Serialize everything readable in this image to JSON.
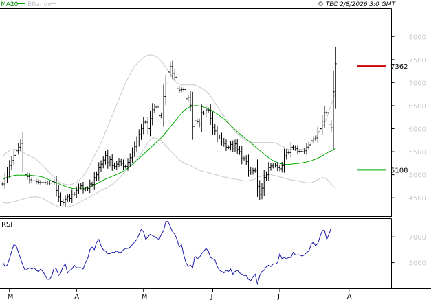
{
  "header": {
    "ma_label": "MA20",
    "bb_label": "BBands",
    "copyright": "© TEC 2/8/2026 3:0 GMT"
  },
  "colors": {
    "price": "#000000",
    "ma": "#00aa00",
    "bbands": "#c8c8c8",
    "rsi": "#1a1aaa",
    "resistance": "#cc0000",
    "support": "#00aa00",
    "axis": "#000000"
  },
  "chart_data": [
    {
      "type": "ohlc",
      "title": "",
      "ylim": [
        4100,
        8600
      ],
      "yticks": [
        {
          "label": "8000",
          "value": 8000
        },
        {
          "label": "7500",
          "value": 7500
        },
        {
          "label": "7000",
          "value": 7000
        },
        {
          "label": "6500",
          "value": 6500
        },
        {
          "label": "6000",
          "value": 6000
        },
        {
          "label": "5500",
          "value": 5500
        },
        {
          "label": "5000",
          "value": 5000
        },
        {
          "label": "4500",
          "value": 4500
        }
      ],
      "xticks": [
        {
          "label": "M",
          "index": 3
        },
        {
          "label": "A",
          "index": 33
        },
        {
          "label": "M",
          "index": 63
        },
        {
          "label": "J",
          "index": 94
        },
        {
          "label": "J",
          "index": 124
        },
        {
          "label": "A",
          "index": 155
        }
      ],
      "price_close": [
        4800,
        4930,
        5060,
        5200,
        5310,
        5420,
        5520,
        5600,
        5680,
        5300,
        5000,
        4960,
        4890,
        4870,
        4870,
        4850,
        4840,
        4830,
        4830,
        4830,
        4820,
        4820,
        4850,
        4830,
        4660,
        4520,
        4420,
        4390,
        4470,
        4520,
        4480,
        4580,
        4580,
        4660,
        4730,
        4760,
        4680,
        4690,
        4700,
        4800,
        4790,
        4940,
        5000,
        5150,
        5230,
        5320,
        5420,
        5260,
        5330,
        5200,
        5180,
        5230,
        5290,
        5250,
        5180,
        5180,
        5270,
        5370,
        5490,
        5610,
        5730,
        5870,
        6000,
        6140,
        6140,
        6000,
        6220,
        6410,
        6470,
        6470,
        6280,
        6300,
        6700,
        6970,
        7230,
        7350,
        7200,
        7120,
        6870,
        6840,
        6850,
        6850,
        6650,
        6680,
        6510,
        6050,
        6170,
        6150,
        6100,
        6350,
        6340,
        6410,
        6400,
        6220,
        6020,
        5950,
        5820,
        5820,
        5730,
        5680,
        5600,
        5600,
        5660,
        5580,
        5670,
        5550,
        5500,
        5350,
        5350,
        5290,
        5100,
        5060,
        5090,
        5100,
        4750,
        4580,
        4710,
        4940,
        5000,
        5150,
        5190,
        5210,
        5200,
        5150,
        5130,
        5200,
        5410,
        5480,
        5480,
        5600,
        5590,
        5570,
        5510,
        5510,
        5500,
        5520,
        5600,
        5650,
        5740,
        5780,
        5800,
        5930,
        6000,
        6160,
        6350,
        6350,
        6100,
        6020,
        6800,
        7410
      ],
      "ma20": [
        4900,
        4940,
        4970,
        4990,
        4990,
        4990,
        4990,
        4980,
        4970,
        4950,
        4910,
        4870,
        4830,
        4790,
        4750,
        4720,
        4700,
        4690,
        4700,
        4720,
        4750,
        4800,
        4850,
        4900,
        4940,
        4980,
        5020,
        5070,
        5130,
        5200,
        5290,
        5380,
        5470,
        5560,
        5650,
        5740,
        5830,
        5950,
        6070,
        6180,
        6310,
        6410,
        6470,
        6500,
        6500,
        6480,
        6440,
        6400,
        6340,
        6270,
        6190,
        6100,
        6010,
        5920,
        5840,
        5760,
        5690,
        5600,
        5520,
        5440,
        5360,
        5300,
        5260,
        5230,
        5220,
        5230,
        5240,
        5250,
        5270,
        5290,
        5320,
        5360,
        5410,
        5470,
        5520,
        5570
      ],
      "bb_upper": [
        5400,
        5500,
        5550,
        5550,
        5500,
        5450,
        5400,
        5350,
        5250,
        5150,
        5050,
        4950,
        4850,
        4800,
        4780,
        4800,
        4850,
        4950,
        5100,
        5300,
        5500,
        5700,
        5950,
        6200,
        6450,
        6700,
        6950,
        7150,
        7350,
        7450,
        7550,
        7600,
        7600,
        7550,
        7450,
        7300,
        7150,
        7000,
        6950,
        6950,
        6950,
        6950,
        6900,
        6850,
        6750,
        6600,
        6450,
        6300,
        6150,
        6000,
        5900,
        5800,
        5750,
        5700,
        5700,
        5700,
        5700,
        5700,
        5700,
        5650,
        5600,
        5550,
        5550,
        5550,
        5550,
        5600,
        5700,
        5850,
        6000,
        6200,
        6500,
        6800
      ],
      "bb_lower": [
        4400,
        4380,
        4400,
        4420,
        4450,
        4480,
        4500,
        4520,
        4520,
        4500,
        4450,
        4400,
        4350,
        4310,
        4300,
        4300,
        4320,
        4350,
        4400,
        4450,
        4500,
        4550,
        4600,
        4650,
        4700,
        4750,
        4820,
        4900,
        5000,
        5100,
        5200,
        5300,
        5400,
        5550,
        5700,
        5800,
        5800,
        5750,
        5650,
        5550,
        5450,
        5350,
        5280,
        5230,
        5200,
        5150,
        5100,
        5070,
        5050,
        5020,
        5000,
        4970,
        4950,
        4930,
        4910,
        4900,
        4880,
        4860,
        4880,
        4900,
        4950,
        4980,
        5000,
        5000,
        4980,
        4950,
        4930,
        4900,
        4880,
        4870,
        4850,
        4830,
        4820,
        4850,
        4900,
        4950,
        4900,
        4800,
        4700
      ],
      "levels": [
        {
          "label": "7362",
          "value": 7362,
          "kind": "resistance"
        },
        {
          "label": "5108",
          "value": 5108,
          "kind": "support"
        }
      ]
    },
    {
      "type": "line",
      "name": "RSI",
      "title": "RSI",
      "ylim": [
        3000,
        8400
      ],
      "yticks": [
        {
          "label": "7000",
          "value": 7000
        },
        {
          "label": "5000",
          "value": 5000
        }
      ],
      "values": [
        5050,
        4700,
        4800,
        5300,
        5900,
        6400,
        6300,
        5800,
        5300,
        4800,
        4400,
        4500,
        4600,
        4500,
        4600,
        4400,
        4300,
        4500,
        4300,
        4000,
        3700,
        3700,
        4000,
        4600,
        4500,
        4000,
        4200,
        4700,
        4900,
        4200,
        4400,
        4500,
        4800,
        4600,
        4600,
        4600,
        4500,
        5000,
        5300,
        6000,
        6200,
        6000,
        6600,
        6800,
        6300,
        6000,
        5900,
        5700,
        5700,
        5800,
        5800,
        5900,
        5800,
        5800,
        6000,
        6100,
        6100,
        6200,
        6400,
        6600,
        6800,
        7200,
        7600,
        7400,
        6800,
        7000,
        7200,
        7100,
        7000,
        6900,
        6800,
        7200,
        7500,
        8200,
        8200,
        7800,
        7400,
        7200,
        6800,
        6200,
        6400,
        5600,
        5000,
        4700,
        4800,
        4600,
        5500,
        5300,
        5400,
        5700,
        5900,
        6100,
        5900,
        5400,
        5300,
        5200,
        4700,
        4400,
        4300,
        4200,
        4400,
        4300,
        4500,
        4100,
        4300,
        4400,
        4200,
        4100,
        4000,
        4000,
        3700,
        3600,
        3900,
        4100,
        3300,
        4000,
        4300,
        4400,
        4700,
        4800,
        4700,
        4900,
        4900,
        5000,
        5700,
        5300,
        5400,
        5300,
        5400,
        5400,
        5800,
        5600,
        5600,
        5600,
        5500,
        5600,
        5800,
        5900,
        6400,
        6600,
        6300,
        6500,
        7000,
        7500,
        7500,
        6800,
        7200,
        7700
      ]
    }
  ]
}
